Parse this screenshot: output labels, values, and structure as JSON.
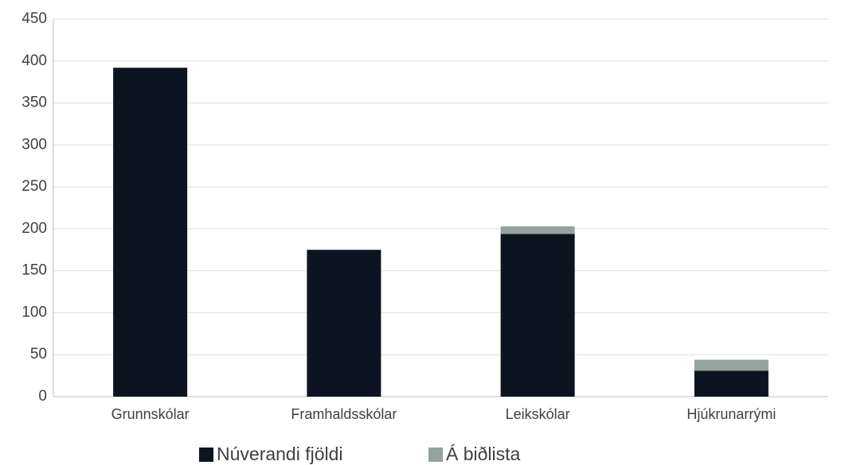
{
  "chart_data": {
    "type": "bar",
    "stacked": true,
    "categories": [
      "Grunnskólar",
      "Framhaldsskólar",
      "Leikskólar",
      "Hjúkrunarrými"
    ],
    "series": [
      {
        "name": "Núverandi fjöldi",
        "color": "#0d1421",
        "values": [
          392,
          175,
          194,
          31
        ]
      },
      {
        "name": "Á biðlista",
        "color": "#95a39f",
        "values": [
          0,
          0,
          9,
          13
        ]
      }
    ],
    "ylim": [
      0,
      450
    ],
    "yticks": [
      0,
      50,
      100,
      150,
      200,
      250,
      300,
      350,
      400,
      450
    ],
    "grid": true,
    "legend": "bottom"
  }
}
